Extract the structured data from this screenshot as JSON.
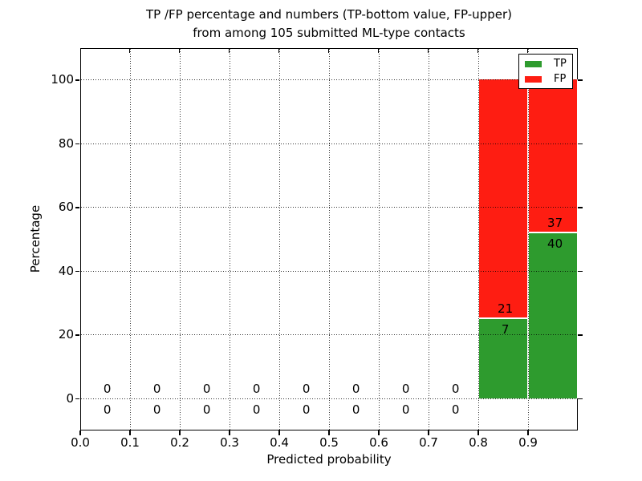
{
  "title": {
    "line1": "TP /FP percentage and numbers (TP-bottom value, FP-upper)",
    "line2": "from among 105 submitted ML-type contacts"
  },
  "x_axis": {
    "label": "Predicted probability",
    "tick_labels": [
      "0.0",
      "0.1",
      "0.2",
      "0.3",
      "0.4",
      "0.5",
      "0.6",
      "0.7",
      "0.8",
      "0.9"
    ]
  },
  "y_axis": {
    "label": "Percentage",
    "tick_labels": [
      "0",
      "20",
      "40",
      "60",
      "80",
      "100"
    ]
  },
  "legend": {
    "items": [
      {
        "label": "TP",
        "color": "#2e9b2e"
      },
      {
        "label": "FP",
        "color": "#fe1d12"
      }
    ]
  },
  "chart_data": {
    "type": "bar",
    "subtype": "stacked-percentage-histogram",
    "title": "TP /FP percentage and numbers (TP-bottom value, FP-upper) from among 105 submitted ML-type contacts",
    "xlabel": "Predicted probability",
    "ylabel": "Percentage",
    "xlim": [
      0.0,
      1.0
    ],
    "ylim": [
      -10,
      110
    ],
    "xticks": [
      0.0,
      0.1,
      0.2,
      0.3,
      0.4,
      0.5,
      0.6,
      0.7,
      0.8,
      0.9
    ],
    "yticks": [
      0,
      20,
      40,
      60,
      80,
      100
    ],
    "grid": "dotted-black",
    "legend_position": "upper-right",
    "total_contacts": 105,
    "bin_width": 0.1,
    "bin_edges": [
      0.0,
      0.1,
      0.2,
      0.3,
      0.4,
      0.5,
      0.6,
      0.7,
      0.8,
      0.9,
      1.0
    ],
    "series": [
      {
        "name": "TP",
        "color": "#2e9b2e",
        "stack_position": "bottom",
        "counts": [
          0,
          0,
          0,
          0,
          0,
          0,
          0,
          0,
          7,
          40
        ]
      },
      {
        "name": "FP",
        "color": "#fe1d12",
        "stack_position": "top",
        "counts": [
          0,
          0,
          0,
          0,
          0,
          0,
          0,
          0,
          21,
          37
        ]
      }
    ],
    "bar_edge_color": "#ffffff",
    "annotation_color": "#000000"
  }
}
